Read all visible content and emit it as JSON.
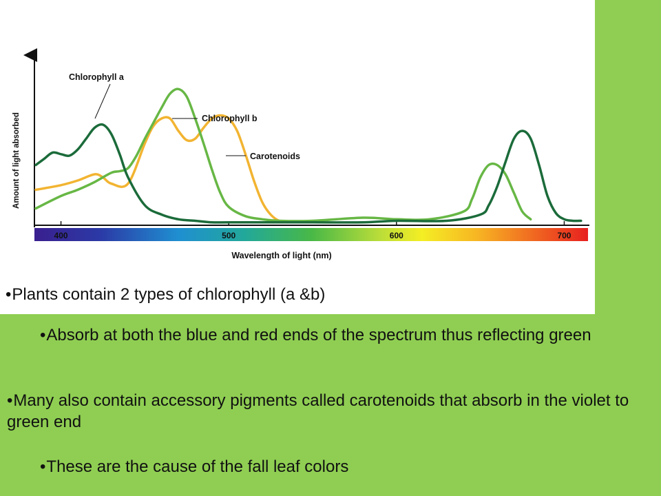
{
  "colors": {
    "slide_background": "#8fce52",
    "chlorophyll_a": "#1b6b3a",
    "chlorophyll_b": "#67b745",
    "carotenoids": "#f2b431"
  },
  "chart_data": {
    "type": "line",
    "title": "",
    "xlabel": "Wavelength of light (nm)",
    "ylabel": "Amount of light absorbed",
    "xlim": [
      385,
      715
    ],
    "ylim": [
      0,
      100
    ],
    "xticks": [
      400,
      500,
      600,
      700
    ],
    "x_axis_spectrum_bar": true,
    "grid": false,
    "series": [
      {
        "name": "Chlorophyll a",
        "x": [
          385,
          390,
          395,
          400,
          405,
          410,
          415,
          420,
          425,
          430,
          435,
          440,
          450,
          460,
          470,
          480,
          490,
          500,
          520,
          550,
          580,
          600,
          630,
          650,
          655,
          660,
          665,
          670,
          675,
          680,
          685,
          690,
          695,
          700,
          705,
          710
        ],
        "values": [
          38,
          42,
          46,
          45,
          44,
          48,
          55,
          62,
          64,
          58,
          45,
          30,
          12,
          6,
          3,
          2,
          1,
          1,
          1,
          1,
          1,
          2,
          2,
          6,
          12,
          24,
          40,
          55,
          60,
          55,
          38,
          18,
          7,
          3,
          2,
          2
        ]
      },
      {
        "name": "Chlorophyll b",
        "x": [
          385,
          400,
          410,
          420,
          430,
          435,
          440,
          445,
          450,
          455,
          460,
          465,
          470,
          475,
          480,
          485,
          490,
          495,
          500,
          510,
          520,
          530,
          550,
          580,
          600,
          620,
          640,
          645,
          650,
          655,
          660,
          665,
          670,
          675,
          680
        ],
        "values": [
          10,
          18,
          22,
          27,
          33,
          34,
          36,
          44,
          55,
          65,
          75,
          84,
          87,
          82,
          68,
          52,
          35,
          20,
          11,
          5,
          3,
          2,
          2,
          4,
          3,
          3,
          8,
          16,
          30,
          38,
          38,
          32,
          20,
          8,
          3
        ]
      },
      {
        "name": "Carotenoids",
        "x": [
          385,
          400,
          410,
          420,
          425,
          430,
          440,
          450,
          455,
          460,
          465,
          470,
          475,
          480,
          485,
          490,
          495,
          500,
          505,
          510,
          515,
          520,
          525,
          530,
          535
        ],
        "values": [
          22,
          25,
          28,
          32,
          30,
          26,
          26,
          52,
          63,
          68,
          68,
          60,
          54,
          55,
          62,
          68,
          70,
          68,
          60,
          45,
          28,
          14,
          6,
          2,
          1
        ]
      }
    ],
    "annotations": [
      "Chlorophyll a",
      "Chlorophyll b",
      "Carotenoids"
    ]
  },
  "bullets": [
    {
      "marker": "•",
      "text": "Plants contain 2 types of chlorophyll  (a &b)"
    },
    {
      "marker": "•",
      "text": "Absorb at both the blue and red ends of the spectrum thus reflecting green"
    },
    {
      "marker": "•",
      "text": "Many also contain accessory pigments called carotenoids that absorb in the violet to green end"
    },
    {
      "marker": "•",
      "text": "These are the cause of the fall leaf colors"
    }
  ]
}
